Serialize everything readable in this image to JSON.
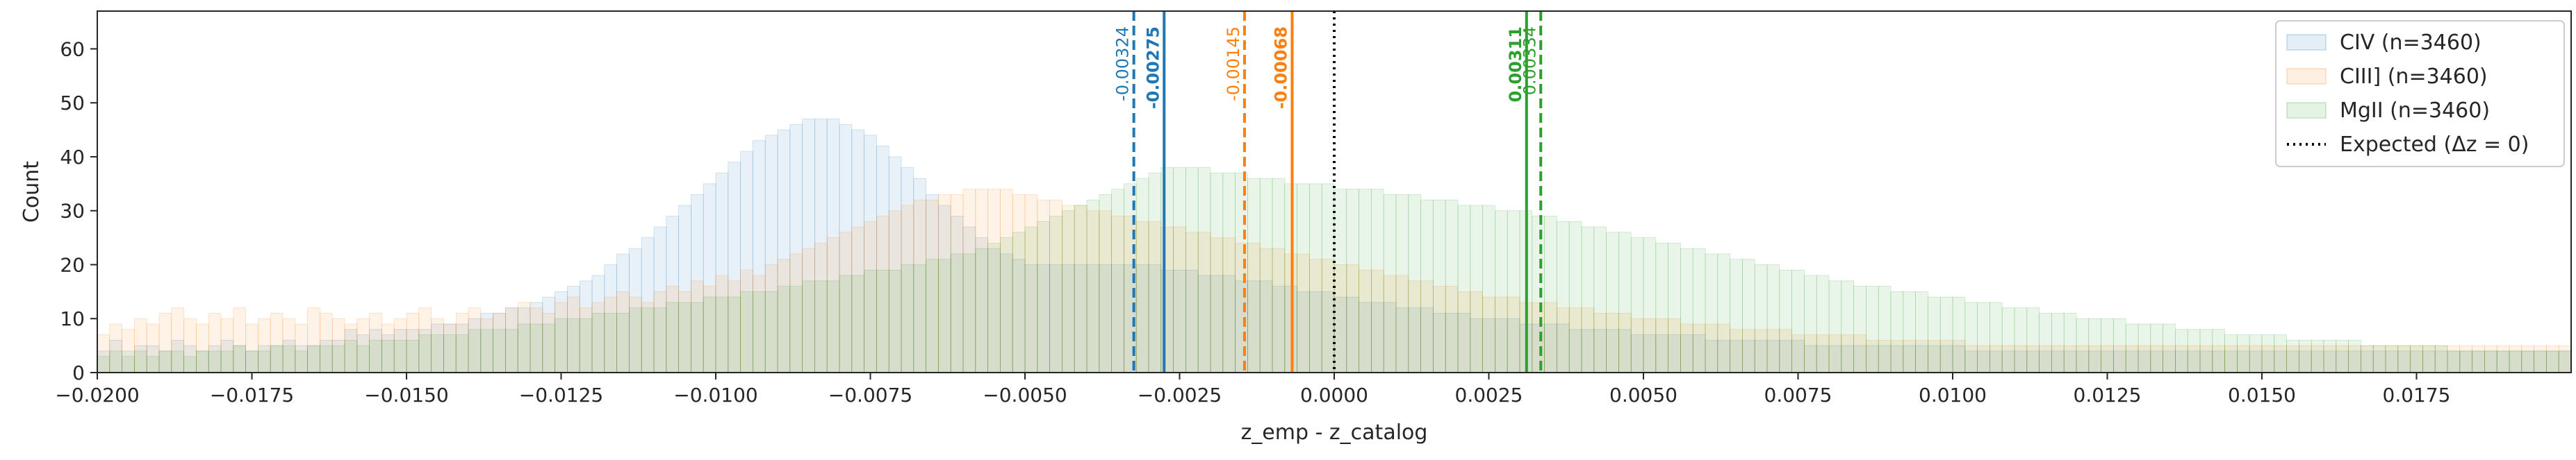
{
  "chart_data": {
    "type": "histogram",
    "xlabel": "z_emp - z_catalog",
    "ylabel": "Count",
    "xlim": [
      -0.02,
      0.02
    ],
    "ylim": [
      0,
      67
    ],
    "x_ticks": [
      {
        "v": -0.02,
        "label": "−0.0200"
      },
      {
        "v": -0.0175,
        "label": "−0.0175"
      },
      {
        "v": -0.015,
        "label": "−0.0150"
      },
      {
        "v": -0.0125,
        "label": "−0.0125"
      },
      {
        "v": -0.01,
        "label": "−0.0100"
      },
      {
        "v": -0.0075,
        "label": "−0.0075"
      },
      {
        "v": -0.005,
        "label": "−0.0050"
      },
      {
        "v": -0.0025,
        "label": "−0.0025"
      },
      {
        "v": 0.0,
        "label": "0.0000"
      },
      {
        "v": 0.0025,
        "label": "0.0025"
      },
      {
        "v": 0.005,
        "label": "0.0050"
      },
      {
        "v": 0.0075,
        "label": "0.0075"
      },
      {
        "v": 0.01,
        "label": "0.0100"
      },
      {
        "v": 0.0125,
        "label": "0.0125"
      },
      {
        "v": 0.015,
        "label": "0.0150"
      },
      {
        "v": 0.0175,
        "label": "0.0175"
      }
    ],
    "y_ticks": [
      0,
      10,
      20,
      30,
      40,
      50,
      60
    ],
    "bin_width": 0.0002,
    "series": [
      {
        "name": "CIV (n=3460)",
        "color": "#1f77b4",
        "bin_start": -0.02,
        "counts": [
          4,
          6,
          4,
          5,
          5,
          4,
          6,
          5,
          4,
          5,
          6,
          5,
          4,
          5,
          5,
          6,
          5,
          5,
          6,
          6,
          8,
          7,
          8,
          7,
          8,
          8,
          8,
          9,
          9,
          9,
          10,
          11,
          11,
          12,
          12,
          13,
          14,
          15,
          16,
          17,
          18,
          20,
          22,
          23,
          25,
          27,
          29,
          31,
          33,
          35,
          37,
          39,
          41,
          43,
          44,
          45,
          46,
          47,
          47,
          47,
          46,
          45,
          44,
          42,
          40,
          38,
          36,
          33,
          31,
          29,
          27,
          25,
          23,
          22,
          21,
          20,
          20,
          20,
          20,
          20,
          20,
          20,
          20,
          20,
          20,
          20,
          19,
          19,
          19,
          18,
          18,
          18,
          17,
          17,
          17,
          16,
          16,
          15,
          15,
          15,
          14,
          14,
          13,
          13,
          13,
          12,
          12,
          12,
          11,
          11,
          11,
          10,
          10,
          10,
          10,
          9,
          9,
          9,
          9,
          8,
          8,
          8,
          8,
          8,
          7,
          7,
          7,
          7,
          7,
          7,
          6,
          6,
          6,
          6,
          6,
          6,
          6,
          6,
          5,
          5,
          5,
          5,
          5,
          5,
          5,
          5,
          5,
          5,
          5,
          5,
          5,
          4,
          4,
          4,
          4,
          4,
          4,
          4,
          4,
          4,
          4,
          4,
          4,
          4,
          4,
          4,
          4,
          4,
          4,
          4,
          4,
          4,
          4,
          4,
          4,
          4,
          4,
          4,
          4,
          4,
          4,
          4,
          4,
          4,
          4,
          4,
          4,
          4,
          4,
          4,
          4,
          4,
          4,
          4,
          4,
          4,
          4,
          4,
          4,
          4,
          4,
          4,
          4,
          4,
          4,
          4
        ]
      },
      {
        "name": "CIII] (n=3460)",
        "color": "#ff7f0e",
        "bin_start": -0.02,
        "counts": [
          7,
          9,
          8,
          10,
          9,
          11,
          12,
          10,
          9,
          11,
          10,
          12,
          9,
          10,
          11,
          10,
          9,
          12,
          11,
          10,
          9,
          10,
          11,
          9,
          10,
          11,
          12,
          10,
          9,
          11,
          12,
          10,
          11,
          12,
          13,
          12,
          11,
          13,
          14,
          12,
          13,
          14,
          15,
          14,
          13,
          15,
          16,
          15,
          17,
          16,
          18,
          17,
          19,
          18,
          20,
          21,
          22,
          23,
          24,
          25,
          26,
          27,
          28,
          29,
          30,
          31,
          32,
          32,
          33,
          33,
          34,
          34,
          34,
          34,
          33,
          33,
          32,
          32,
          31,
          31,
          30,
          30,
          29,
          29,
          28,
          28,
          27,
          27,
          26,
          26,
          25,
          25,
          24,
          24,
          23,
          23,
          22,
          22,
          21,
          21,
          20,
          20,
          19,
          19,
          18,
          18,
          17,
          17,
          16,
          16,
          15,
          15,
          14,
          14,
          14,
          13,
          13,
          13,
          12,
          12,
          12,
          11,
          11,
          11,
          10,
          10,
          10,
          10,
          9,
          9,
          9,
          9,
          8,
          8,
          8,
          8,
          8,
          7,
          7,
          7,
          7,
          7,
          7,
          6,
          6,
          6,
          6,
          6,
          6,
          6,
          6,
          5,
          5,
          5,
          5,
          5,
          5,
          5,
          5,
          5,
          5,
          5,
          5,
          5,
          5,
          5,
          5,
          5,
          5,
          5,
          5,
          5,
          5,
          5,
          5,
          5,
          5,
          5,
          5,
          5,
          5,
          5,
          5,
          5,
          5,
          5,
          5,
          5,
          5,
          5,
          5,
          5,
          5,
          5,
          5,
          5,
          5,
          5,
          5,
          5,
          5
        ]
      },
      {
        "name": "MgII (n=3460)",
        "color": "#2ca02c",
        "bin_start": -0.02,
        "counts": [
          3,
          4,
          3,
          4,
          3,
          4,
          4,
          3,
          4,
          4,
          4,
          5,
          4,
          4,
          5,
          5,
          4,
          5,
          5,
          5,
          6,
          5,
          6,
          6,
          6,
          6,
          7,
          7,
          7,
          7,
          8,
          8,
          8,
          8,
          9,
          9,
          9,
          10,
          10,
          10,
          11,
          11,
          11,
          12,
          12,
          12,
          13,
          13,
          13,
          14,
          14,
          14,
          15,
          15,
          15,
          16,
          16,
          17,
          17,
          17,
          18,
          18,
          19,
          19,
          19,
          20,
          20,
          21,
          21,
          22,
          22,
          23,
          24,
          25,
          26,
          27,
          28,
          29,
          30,
          31,
          32,
          33,
          34,
          35,
          36,
          37,
          38,
          38,
          38,
          38,
          37,
          37,
          37,
          36,
          36,
          36,
          35,
          35,
          35,
          35,
          34,
          34,
          34,
          34,
          33,
          33,
          33,
          32,
          32,
          32,
          31,
          31,
          31,
          30,
          30,
          30,
          29,
          29,
          28,
          28,
          27,
          27,
          26,
          26,
          25,
          25,
          24,
          24,
          23,
          23,
          22,
          22,
          21,
          21,
          20,
          20,
          19,
          19,
          18,
          18,
          17,
          17,
          16,
          16,
          16,
          15,
          15,
          15,
          14,
          14,
          14,
          13,
          13,
          13,
          12,
          12,
          12,
          11,
          11,
          11,
          10,
          10,
          10,
          10,
          9,
          9,
          9,
          9,
          8,
          8,
          8,
          8,
          7,
          7,
          7,
          7,
          7,
          6,
          6,
          6,
          6,
          6,
          6,
          5,
          5,
          5,
          5,
          5,
          5,
          5,
          4,
          4,
          4,
          4,
          4,
          4,
          4,
          4,
          4,
          4
        ]
      }
    ],
    "vlines": [
      {
        "x": -0.00324,
        "label": "-0.00324",
        "color": "#1f77b4",
        "style": "dashed",
        "bold": false
      },
      {
        "x": -0.00275,
        "label": "-0.00275",
        "color": "#1f77b4",
        "style": "solid",
        "bold": true
      },
      {
        "x": -0.00145,
        "label": "-0.00145",
        "color": "#ff7f0e",
        "style": "dashed",
        "bold": false
      },
      {
        "x": -0.00068,
        "label": "-0.00068",
        "color": "#ff7f0e",
        "style": "solid",
        "bold": true
      },
      {
        "x": 0.00311,
        "label": "0.00311",
        "color": "#2ca02c",
        "style": "solid",
        "bold": true
      },
      {
        "x": 0.00334,
        "label": "0.00334",
        "color": "#2ca02c",
        "style": "dashed",
        "bold": false
      },
      {
        "x": 0.0,
        "label": "",
        "color": "#000000",
        "style": "dotted",
        "bold": false
      }
    ],
    "legend": {
      "placement": "top-right",
      "entries": [
        {
          "label": "CIV (n=3460)",
          "kind": "patch",
          "color": "#1f77b4"
        },
        {
          "label": "CIII] (n=3460)",
          "kind": "patch",
          "color": "#ff7f0e"
        },
        {
          "label": "MgII (n=3460)",
          "kind": "patch",
          "color": "#2ca02c"
        },
        {
          "label": "Expected (Δz = 0)",
          "kind": "dotted-line",
          "color": "#000000"
        }
      ]
    }
  }
}
